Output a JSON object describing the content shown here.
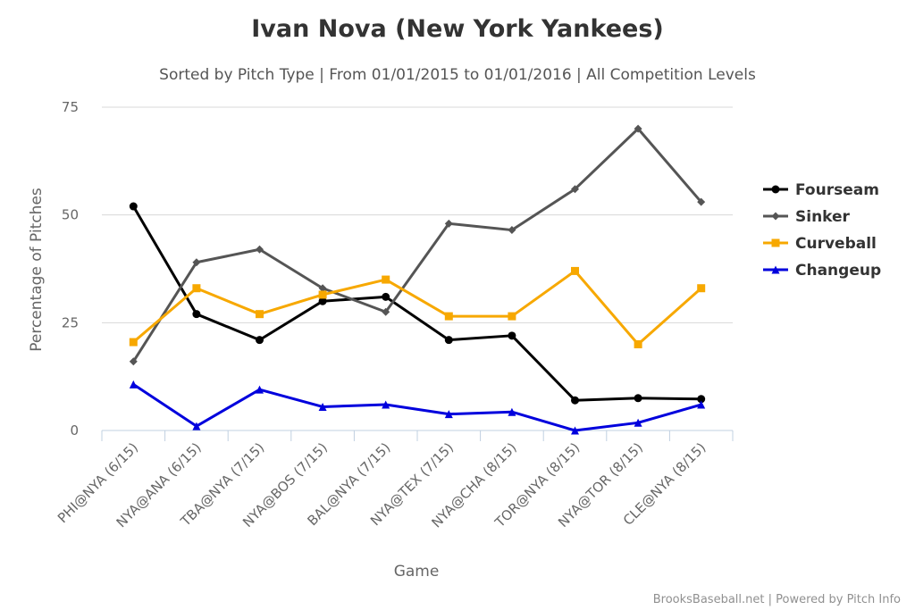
{
  "chart_data": {
    "type": "line",
    "title": "Ivan Nova (New York Yankees)",
    "subtitle": "Sorted by Pitch Type | From 01/01/2015 to 01/01/2016 | All Competition Levels",
    "xlabel": "Game",
    "ylabel": "Percentage of Pitches",
    "ylim": [
      0,
      75
    ],
    "yticks": [
      "0",
      "25",
      "50",
      "75"
    ],
    "categories": [
      "PHI@NYA (6/15)",
      "NYA@ANA (6/15)",
      "TBA@NYA (7/15)",
      "NYA@BOS (7/15)",
      "BAL@NYA (7/15)",
      "NYA@TEX (7/15)",
      "NYA@CHA (8/15)",
      "TOR@NYA (8/15)",
      "NYA@TOR (8/15)",
      "CLE@NYA (8/15)"
    ],
    "grid": true,
    "legend_position": "right",
    "series": [
      {
        "name": "Fourseam",
        "color": "#000000",
        "marker": "circle",
        "values": [
          52,
          27,
          21,
          30,
          31,
          21,
          22,
          7,
          7.5,
          7.3
        ]
      },
      {
        "name": "Sinker",
        "color": "#555555",
        "marker": "diamond",
        "values": [
          16,
          39,
          42,
          33,
          27.5,
          48,
          46.5,
          56,
          70,
          53
        ]
      },
      {
        "name": "Curveball",
        "color": "#f7a800",
        "marker": "square",
        "values": [
          20.5,
          33,
          27,
          31.5,
          35,
          26.5,
          26.5,
          37,
          20,
          33
        ]
      },
      {
        "name": "Changeup",
        "color": "#0000dd",
        "marker": "triangle",
        "values": [
          10.7,
          1,
          9.5,
          5.5,
          6,
          3.8,
          4.3,
          0,
          1.8,
          6
        ]
      }
    ]
  },
  "credits": "BrooksBaseball.net | Powered by Pitch Info"
}
